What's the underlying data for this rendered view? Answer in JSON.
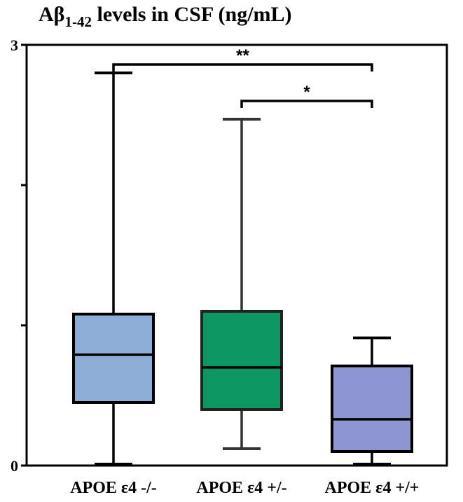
{
  "chart_data": {
    "type": "box",
    "title_main": "Aβ",
    "title_sub": "1-42",
    "title_rest": " levels in CSF (ng/mL)",
    "xlabel": "",
    "ylabel": "",
    "ylim": [
      0,
      3
    ],
    "yticks": [
      0,
      1,
      2,
      3
    ],
    "ytick_labels": [
      "0",
      "",
      "",
      "3"
    ],
    "grid": false,
    "categories": [
      "APOE ε4 -/-",
      "APOE ε4 +/-",
      "APOE ε4 +/+"
    ],
    "boxes": [
      {
        "min": 0.01,
        "q1": 0.45,
        "median": 0.79,
        "q3": 1.08,
        "max": 2.8,
        "color": "#8eadd6"
      },
      {
        "min": 0.12,
        "q1": 0.4,
        "median": 0.7,
        "q3": 1.1,
        "max": 2.47,
        "color": "#0e9761"
      },
      {
        "min": 0.01,
        "q1": 0.1,
        "median": 0.33,
        "q3": 0.71,
        "max": 0.91,
        "color": "#8e95d1"
      }
    ],
    "significance": [
      {
        "from": 0,
        "to": 2,
        "y": 2.86,
        "label": "**"
      },
      {
        "from": 1,
        "to": 2,
        "y": 2.6,
        "label": "*"
      }
    ]
  }
}
